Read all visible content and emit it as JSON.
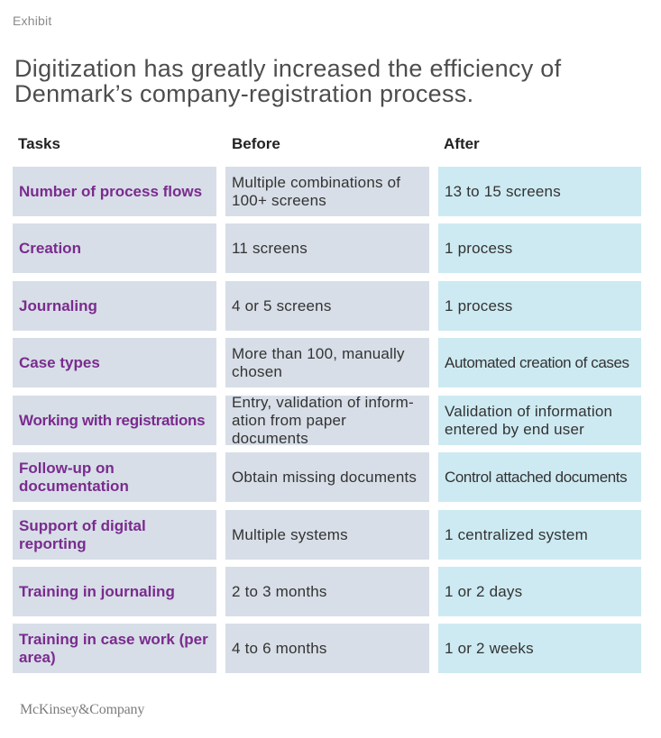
{
  "exhibit_label": "Exhibit",
  "title": "Digitization has greatly increased the efficiency of Denmark’s company-registration process.",
  "table": {
    "headers": [
      "Tasks",
      "Before",
      "After"
    ],
    "rows": [
      {
        "task": "Number of process flows",
        "before": "Multiple combinations of 100+ screens",
        "after": "13 to 15 screens"
      },
      {
        "task": "Creation",
        "before": "11 screens",
        "after": "1 process"
      },
      {
        "task": "Journaling",
        "before": "4 or 5 screens",
        "after": "1 process"
      },
      {
        "task": "Case types",
        "before": "More than 100, manually chosen",
        "after": "Automated creation of cases"
      },
      {
        "task": "Working with registrations",
        "before": "Entry, validation of inform-ation from paper documents",
        "after": "Validation of information entered by end user"
      },
      {
        "task": "Follow-up on documentation",
        "before": "Obtain missing documents",
        "after": "Control attached documents"
      },
      {
        "task": "Support of digital reporting",
        "before": "Multiple systems",
        "after": "1 centralized system"
      },
      {
        "task": "Training in journaling",
        "before": "2 to 3 months",
        "after": "1 or 2 days"
      },
      {
        "task": "Training in case work (per area)",
        "before": "4 to 6 months",
        "after": "1 or 2 weeks"
      }
    ]
  },
  "footer_logo": "McKinsey&Company",
  "colors": {
    "task_text": "#7a2b8e",
    "cell_gray": "#d7dee7",
    "cell_blue": "#cdeaf2",
    "title_text": "#4d4d4d"
  }
}
